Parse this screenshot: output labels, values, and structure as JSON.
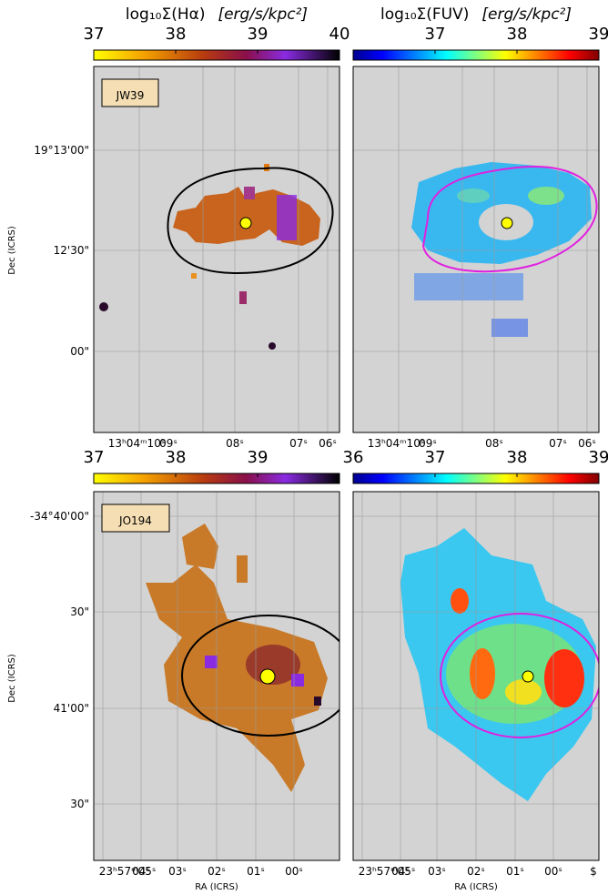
{
  "colorbars": [
    {
      "quantity": "log₁₀Σ(Hα)",
      "unit": "[erg/s/kpc²]",
      "lim": [
        37,
        40
      ],
      "ticks": [
        37,
        38,
        39,
        40
      ]
    },
    {
      "quantity": "log₁₀Σ(FUV)",
      "unit": "[erg/s/kpc²]",
      "lim": [
        36,
        39
      ],
      "ticks": [
        37,
        38,
        39
      ]
    },
    {
      "lim": [
        37,
        40
      ],
      "ticks": [
        37,
        38,
        39
      ]
    },
    {
      "lim": [
        36,
        39
      ],
      "ticks": [
        36,
        37,
        38,
        39
      ]
    }
  ],
  "panels": [
    {
      "label": "JW39",
      "y_ticks": [
        "19°13'00\"",
        "12'30\"",
        "00\""
      ],
      "x_ticks": [
        "13ʰ04ᵐ10ˢ",
        "09ˢ",
        "08ˢ",
        "07ˢ",
        "06ˢ"
      ],
      "y_axis_label": "Dec (ICRS)"
    },
    {
      "x_ticks": [
        "13ʰ04ᵐ10ˢ",
        "09ˢ",
        "08ˢ",
        "07ˢ",
        "06ˢ"
      ]
    },
    {
      "label": "JO194",
      "y_ticks": [
        "-34°40'00\"",
        "30\"",
        "41'00\"",
        "30\""
      ],
      "x_ticks": [
        "23ʰ57ᵐ05ˢ",
        "04ˢ",
        "03ˢ",
        "02ˢ",
        "01ˢ",
        "00ˢ"
      ],
      "y_axis_label": "Dec (ICRS)",
      "x_axis_label": "RA (ICRS)"
    },
    {
      "x_ticks": [
        "23ʰ57ᵐ05ˢ",
        "04ˢ",
        "03ˢ",
        "02ˢ",
        "01ˢ",
        "00ˢ",
        "$"
      ],
      "x_axis_label": "RA (ICRS)"
    }
  ]
}
